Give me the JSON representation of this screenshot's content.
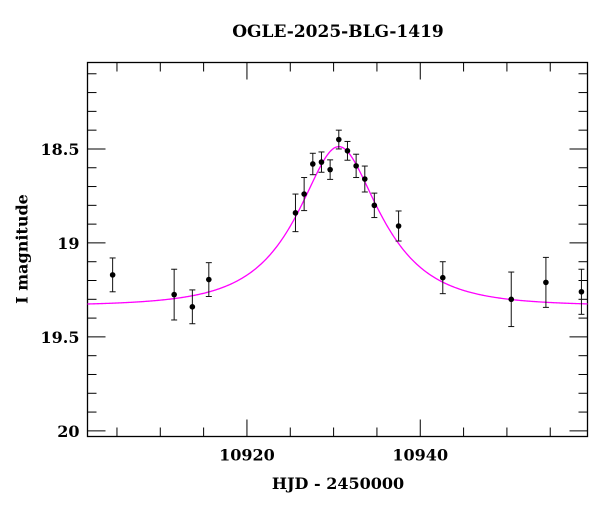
{
  "chart_data": {
    "type": "scatter",
    "title": "OGLE-2025-BLG-1419",
    "xlabel": "HJD - 2450000",
    "ylabel": "I magnitude",
    "xlim": [
      10901.6,
      10959.3
    ],
    "ylim": [
      20.03,
      18.04
    ],
    "y_inverted": true,
    "grid": false,
    "x_ticks": [
      10920,
      10940
    ],
    "x_tick_labels": [
      "10920",
      "10940"
    ],
    "x_minor_step": 5,
    "y_ticks": [
      18.5,
      19,
      19.5,
      20
    ],
    "y_tick_labels": [
      "18.5",
      "19",
      "19.5",
      "20"
    ],
    "y_minor_step": 0.1,
    "series": [
      {
        "type": "errorbar",
        "color": "#000000",
        "x": [
          10904.5,
          10911.6,
          10913.7,
          10915.6,
          10925.6,
          10926.6,
          10927.6,
          10928.6,
          10929.6,
          10930.6,
          10931.6,
          10932.6,
          10933.6,
          10934.7,
          10937.5,
          10942.6,
          10950.5,
          10954.5,
          10958.6
        ],
        "y": [
          19.17,
          19.275,
          19.34,
          19.195,
          18.84,
          18.74,
          18.58,
          18.57,
          18.61,
          18.45,
          18.51,
          18.59,
          18.66,
          18.8,
          18.91,
          19.185,
          19.3,
          19.21,
          19.26
        ],
        "yerr": [
          0.09,
          0.135,
          0.09,
          0.09,
          0.1,
          0.088,
          0.057,
          0.054,
          0.052,
          0.05,
          0.05,
          0.062,
          0.069,
          0.065,
          0.08,
          0.085,
          0.145,
          0.133,
          0.12
        ]
      },
      {
        "type": "model-curve",
        "color": "#ff00ff",
        "baseline_mag": 19.335,
        "t0": 10930.6,
        "u0": 0.5,
        "tE": 8.2
      }
    ]
  }
}
